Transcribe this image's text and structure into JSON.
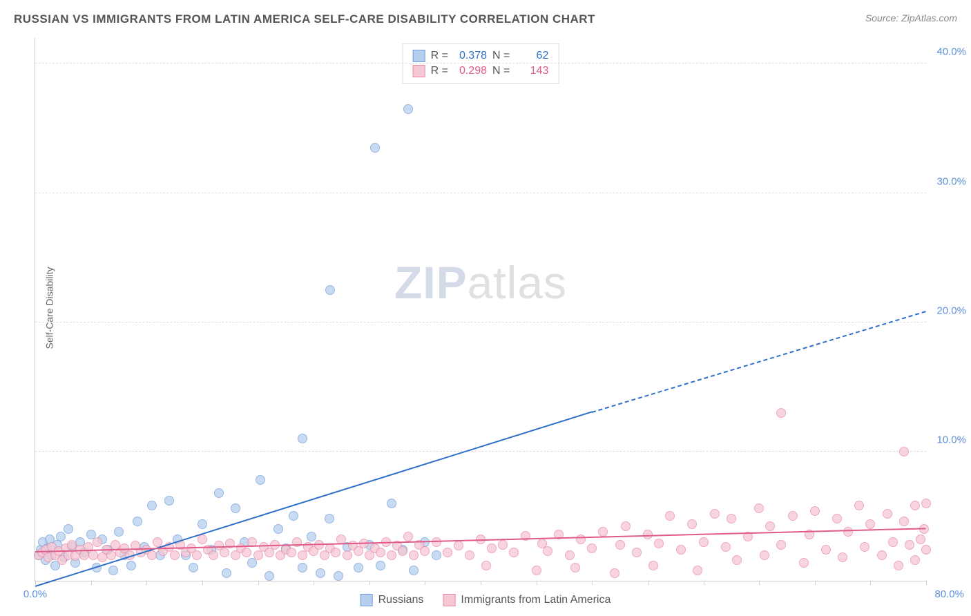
{
  "chart": {
    "type": "scatter",
    "title": "RUSSIAN VS IMMIGRANTS FROM LATIN AMERICA SELF-CARE DISABILITY CORRELATION CHART",
    "source": "Source: ZipAtlas.com",
    "y_axis_label": "Self-Care Disability",
    "watermark_zip": "ZIP",
    "watermark_atlas": "atlas",
    "background_color": "#ffffff",
    "grid_color": "#dddddd",
    "axis_color": "#cccccc",
    "tick_label_color": "#5b8fd8",
    "xlim": [
      0,
      80
    ],
    "ylim": [
      0,
      42
    ],
    "y_ticks": [
      10,
      20,
      30,
      40
    ],
    "y_tick_labels": [
      "10.0%",
      "20.0%",
      "30.0%",
      "40.0%"
    ],
    "x_tick_minor_step": 5,
    "x_min_label": "0.0%",
    "x_max_label": "80.0%",
    "point_radius": 7,
    "series": [
      {
        "name": "Russians",
        "fill_color": "#b7cfee",
        "stroke_color": "#6f9fd8",
        "trend_color": "#2f6fc8",
        "r_value": "0.378",
        "n_value": "62",
        "trend": {
          "x1": 0,
          "y1": -0.5,
          "x2": 50,
          "y2": 13.0
        },
        "trend_dash": {
          "x1": 50,
          "y1": 13.0,
          "x2": 80,
          "y2": 20.8
        },
        "points": [
          [
            0.3,
            2.0
          ],
          [
            0.5,
            2.4
          ],
          [
            0.7,
            3.0
          ],
          [
            0.9,
            1.6
          ],
          [
            1.1,
            2.5
          ],
          [
            1.3,
            3.2
          ],
          [
            1.5,
            2.0
          ],
          [
            1.8,
            1.2
          ],
          [
            2.0,
            2.8
          ],
          [
            2.3,
            3.4
          ],
          [
            2.6,
            1.8
          ],
          [
            3.0,
            4.0
          ],
          [
            3.3,
            2.6
          ],
          [
            3.6,
            1.4
          ],
          [
            4.0,
            3.0
          ],
          [
            4.4,
            2.2
          ],
          [
            5.0,
            3.6
          ],
          [
            5.5,
            1.0
          ],
          [
            6.0,
            3.2
          ],
          [
            6.5,
            2.4
          ],
          [
            7.0,
            0.8
          ],
          [
            7.5,
            3.8
          ],
          [
            8.0,
            2.0
          ],
          [
            8.6,
            1.2
          ],
          [
            9.2,
            4.6
          ],
          [
            9.8,
            2.6
          ],
          [
            10.5,
            5.8
          ],
          [
            11.2,
            2.0
          ],
          [
            12.0,
            6.2
          ],
          [
            12.8,
            3.2
          ],
          [
            13.5,
            2.0
          ],
          [
            14.2,
            1.0
          ],
          [
            15.0,
            4.4
          ],
          [
            15.8,
            2.4
          ],
          [
            16.5,
            6.8
          ],
          [
            17.2,
            0.6
          ],
          [
            18.0,
            5.6
          ],
          [
            18.8,
            3.0
          ],
          [
            19.5,
            1.4
          ],
          [
            20.2,
            7.8
          ],
          [
            21.0,
            0.4
          ],
          [
            21.8,
            4.0
          ],
          [
            22.5,
            2.5
          ],
          [
            23.2,
            5.0
          ],
          [
            24.0,
            1.0
          ],
          [
            24.0,
            11.0
          ],
          [
            24.8,
            3.4
          ],
          [
            25.6,
            0.6
          ],
          [
            26.4,
            4.8
          ],
          [
            27.2,
            0.4
          ],
          [
            28.0,
            2.6
          ],
          [
            29.0,
            1.0
          ],
          [
            26.5,
            22.5
          ],
          [
            30.0,
            2.8
          ],
          [
            31.0,
            1.2
          ],
          [
            30.5,
            33.5
          ],
          [
            32.0,
            6.0
          ],
          [
            33.0,
            2.4
          ],
          [
            34.0,
            0.8
          ],
          [
            33.5,
            36.5
          ],
          [
            35.0,
            3.0
          ],
          [
            36.0,
            2.0
          ]
        ]
      },
      {
        "name": "Immigrants from Latin America",
        "fill_color": "#f6c8d4",
        "stroke_color": "#e88aa6",
        "trend_color": "#e05a8a",
        "r_value": "0.298",
        "n_value": "143",
        "trend": {
          "x1": 0,
          "y1": 2.2,
          "x2": 80,
          "y2": 4.0
        },
        "points": [
          [
            0.3,
            2.0
          ],
          [
            0.6,
            2.2
          ],
          [
            0.9,
            2.4
          ],
          [
            1.2,
            1.8
          ],
          [
            1.5,
            2.6
          ],
          [
            1.8,
            2.0
          ],
          [
            2.1,
            2.3
          ],
          [
            2.4,
            1.6
          ],
          [
            2.7,
            2.5
          ],
          [
            3.0,
            2.0
          ],
          [
            3.3,
            2.8
          ],
          [
            3.6,
            1.9
          ],
          [
            4.0,
            2.4
          ],
          [
            4.4,
            2.0
          ],
          [
            4.8,
            2.6
          ],
          [
            5.2,
            2.0
          ],
          [
            5.6,
            3.0
          ],
          [
            6.0,
            1.8
          ],
          [
            6.4,
            2.4
          ],
          [
            6.8,
            2.0
          ],
          [
            7.2,
            2.8
          ],
          [
            7.6,
            2.2
          ],
          [
            8.0,
            2.5
          ],
          [
            8.5,
            2.0
          ],
          [
            9.0,
            2.7
          ],
          [
            9.5,
            2.2
          ],
          [
            10.0,
            2.4
          ],
          [
            10.5,
            2.0
          ],
          [
            11.0,
            3.0
          ],
          [
            11.5,
            2.3
          ],
          [
            12.0,
            2.6
          ],
          [
            12.5,
            2.0
          ],
          [
            13.0,
            2.8
          ],
          [
            13.5,
            2.2
          ],
          [
            14.0,
            2.5
          ],
          [
            14.5,
            2.0
          ],
          [
            15.0,
            3.2
          ],
          [
            15.5,
            2.4
          ],
          [
            16.0,
            2.0
          ],
          [
            16.5,
            2.7
          ],
          [
            17.0,
            2.2
          ],
          [
            17.5,
            2.9
          ],
          [
            18.0,
            2.0
          ],
          [
            18.5,
            2.5
          ],
          [
            19.0,
            2.2
          ],
          [
            19.5,
            3.0
          ],
          [
            20.0,
            2.0
          ],
          [
            20.5,
            2.6
          ],
          [
            21.0,
            2.2
          ],
          [
            21.5,
            2.8
          ],
          [
            22.0,
            2.0
          ],
          [
            22.5,
            2.4
          ],
          [
            23.0,
            2.2
          ],
          [
            23.5,
            3.0
          ],
          [
            24.0,
            2.0
          ],
          [
            24.5,
            2.6
          ],
          [
            25.0,
            2.3
          ],
          [
            25.5,
            2.8
          ],
          [
            26.0,
            2.0
          ],
          [
            26.5,
            2.5
          ],
          [
            27.0,
            2.2
          ],
          [
            27.5,
            3.2
          ],
          [
            28.0,
            2.0
          ],
          [
            28.5,
            2.7
          ],
          [
            29.0,
            2.3
          ],
          [
            29.5,
            2.9
          ],
          [
            30.0,
            2.0
          ],
          [
            30.5,
            2.5
          ],
          [
            31.0,
            2.2
          ],
          [
            31.5,
            3.0
          ],
          [
            32.0,
            2.0
          ],
          [
            32.5,
            2.7
          ],
          [
            33.0,
            2.3
          ],
          [
            33.5,
            3.4
          ],
          [
            34.0,
            2.0
          ],
          [
            34.5,
            2.8
          ],
          [
            35.0,
            2.3
          ],
          [
            36.0,
            3.0
          ],
          [
            37.0,
            2.2
          ],
          [
            38.0,
            2.7
          ],
          [
            39.0,
            2.0
          ],
          [
            40.0,
            3.2
          ],
          [
            40.5,
            1.2
          ],
          [
            41.0,
            2.5
          ],
          [
            42.0,
            2.8
          ],
          [
            43.0,
            2.2
          ],
          [
            44.0,
            3.5
          ],
          [
            45.0,
            0.8
          ],
          [
            45.5,
            2.9
          ],
          [
            46.0,
            2.3
          ],
          [
            47.0,
            3.6
          ],
          [
            48.0,
            2.0
          ],
          [
            48.5,
            1.0
          ],
          [
            49.0,
            3.2
          ],
          [
            50.0,
            2.5
          ],
          [
            51.0,
            3.8
          ],
          [
            52.0,
            0.6
          ],
          [
            52.5,
            2.8
          ],
          [
            53.0,
            4.2
          ],
          [
            54.0,
            2.2
          ],
          [
            55.0,
            3.6
          ],
          [
            55.5,
            1.2
          ],
          [
            56.0,
            2.9
          ],
          [
            57.0,
            5.0
          ],
          [
            58.0,
            2.4
          ],
          [
            59.0,
            4.4
          ],
          [
            59.5,
            0.8
          ],
          [
            60.0,
            3.0
          ],
          [
            61.0,
            5.2
          ],
          [
            62.0,
            2.6
          ],
          [
            62.5,
            4.8
          ],
          [
            63.0,
            1.6
          ],
          [
            64.0,
            3.4
          ],
          [
            65.0,
            5.6
          ],
          [
            65.5,
            2.0
          ],
          [
            66.0,
            4.2
          ],
          [
            67.0,
            2.8
          ],
          [
            67.0,
            13.0
          ],
          [
            68.0,
            5.0
          ],
          [
            69.0,
            1.4
          ],
          [
            69.5,
            3.6
          ],
          [
            70.0,
            5.4
          ],
          [
            71.0,
            2.4
          ],
          [
            72.0,
            4.8
          ],
          [
            72.5,
            1.8
          ],
          [
            73.0,
            3.8
          ],
          [
            74.0,
            5.8
          ],
          [
            74.5,
            2.6
          ],
          [
            75.0,
            4.4
          ],
          [
            76.0,
            2.0
          ],
          [
            76.5,
            5.2
          ],
          [
            77.0,
            3.0
          ],
          [
            77.5,
            1.2
          ],
          [
            78.0,
            4.6
          ],
          [
            78.5,
            2.8
          ],
          [
            78.0,
            10.0
          ],
          [
            79.0,
            5.8
          ],
          [
            79.5,
            3.2
          ],
          [
            79.0,
            1.6
          ],
          [
            79.8,
            4.0
          ],
          [
            80.0,
            2.4
          ],
          [
            80.0,
            6.0
          ]
        ]
      }
    ],
    "stats_labels": {
      "r": "R =",
      "n": "N ="
    },
    "legend_labels": [
      "Russians",
      "Immigrants from Latin America"
    ]
  }
}
